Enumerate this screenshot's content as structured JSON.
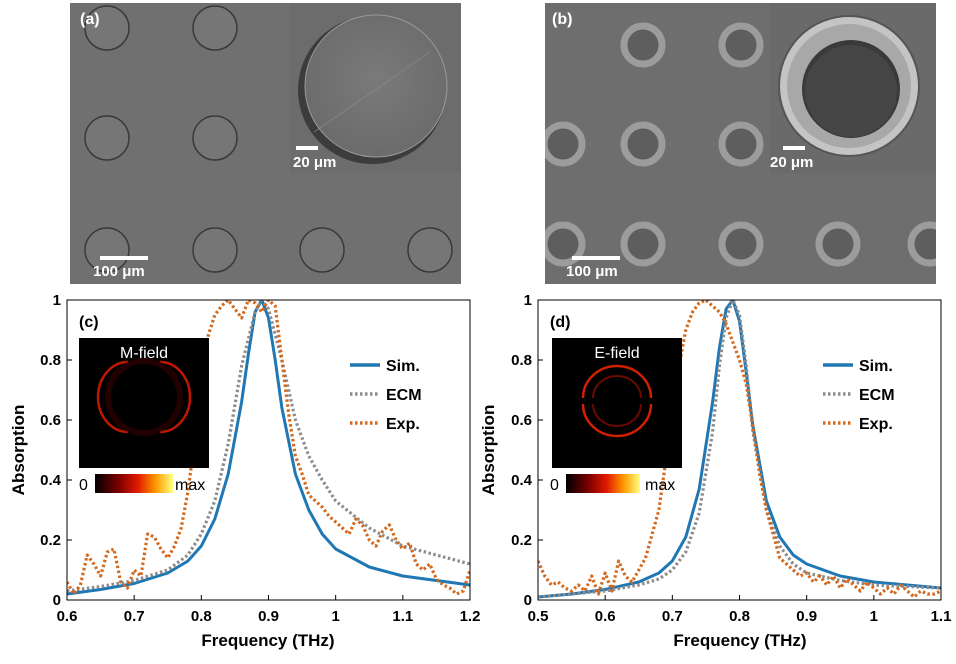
{
  "panels": {
    "a": {
      "label": "(a)",
      "scale_main": "100 μm",
      "scale_inset": "20 μm"
    },
    "b": {
      "label": "(b)",
      "scale_main": "100 μm",
      "scale_inset": "20 μm"
    }
  },
  "colorbar": {
    "min_label": "0",
    "max_label": "max"
  },
  "colors": {
    "sim": "#1f77b4",
    "ecm": "#8c8c8c",
    "exp": "#d2691e"
  },
  "chart_data": [
    {
      "type": "line",
      "panel_label": "(c)",
      "inset_title": "M-field",
      "xlabel": "Frequency (THz)",
      "ylabel": "Absorption",
      "xlim": [
        0.6,
        1.2
      ],
      "ylim": [
        0,
        1
      ],
      "xticks": [
        "0.6",
        "0.7",
        "0.8",
        "0.9",
        "1",
        "1.1",
        "1.2"
      ],
      "yticks": [
        "0",
        "0.2",
        "0.4",
        "0.6",
        "0.8",
        "1"
      ],
      "legend_position": "right",
      "series": [
        {
          "name": "Sim.",
          "style": "solid",
          "x": [
            0.6,
            0.65,
            0.7,
            0.75,
            0.78,
            0.8,
            0.82,
            0.84,
            0.86,
            0.87,
            0.88,
            0.89,
            0.9,
            0.91,
            0.92,
            0.94,
            0.96,
            0.98,
            1.0,
            1.05,
            1.1,
            1.15,
            1.2
          ],
          "y": [
            0.02,
            0.035,
            0.055,
            0.09,
            0.13,
            0.18,
            0.27,
            0.42,
            0.66,
            0.82,
            0.96,
            1.0,
            0.94,
            0.8,
            0.64,
            0.42,
            0.3,
            0.22,
            0.17,
            0.11,
            0.08,
            0.065,
            0.05
          ]
        },
        {
          "name": "ECM",
          "style": "dotted",
          "x": [
            0.6,
            0.65,
            0.7,
            0.75,
            0.78,
            0.8,
            0.82,
            0.84,
            0.86,
            0.88,
            0.89,
            0.9,
            0.92,
            0.94,
            0.96,
            0.98,
            1.0,
            1.05,
            1.1,
            1.15,
            1.2
          ],
          "y": [
            0.03,
            0.045,
            0.065,
            0.1,
            0.15,
            0.22,
            0.33,
            0.52,
            0.78,
            0.96,
            1.0,
            0.97,
            0.8,
            0.6,
            0.48,
            0.4,
            0.33,
            0.24,
            0.18,
            0.15,
            0.12
          ]
        },
        {
          "name": "Exp.",
          "style": "dotted",
          "x": [
            0.6,
            0.61,
            0.62,
            0.63,
            0.64,
            0.65,
            0.66,
            0.67,
            0.68,
            0.69,
            0.7,
            0.71,
            0.72,
            0.73,
            0.74,
            0.75,
            0.76,
            0.77,
            0.78,
            0.79,
            0.8,
            0.81,
            0.82,
            0.83,
            0.84,
            0.85,
            0.86,
            0.87,
            0.88,
            0.89,
            0.9,
            0.91,
            0.92,
            0.93,
            0.94,
            0.95,
            0.96,
            0.97,
            0.98,
            0.99,
            1.0,
            1.01,
            1.02,
            1.03,
            1.04,
            1.05,
            1.06,
            1.07,
            1.08,
            1.09,
            1.1,
            1.11,
            1.12,
            1.13,
            1.14,
            1.15,
            1.16,
            1.17,
            1.18,
            1.19,
            1.2
          ],
          "y": [
            0.06,
            0.02,
            0.05,
            0.15,
            0.12,
            0.08,
            0.16,
            0.17,
            0.06,
            0.04,
            0.1,
            0.08,
            0.22,
            0.21,
            0.17,
            0.14,
            0.18,
            0.24,
            0.36,
            0.53,
            0.75,
            0.88,
            0.95,
            0.98,
            1.0,
            0.97,
            0.94,
            1.0,
            0.99,
            0.96,
            1.0,
            0.98,
            0.8,
            0.62,
            0.48,
            0.42,
            0.35,
            0.33,
            0.31,
            0.28,
            0.26,
            0.24,
            0.22,
            0.27,
            0.25,
            0.2,
            0.18,
            0.23,
            0.25,
            0.2,
            0.17,
            0.19,
            0.12,
            0.1,
            0.12,
            0.07,
            0.05,
            0.04,
            0.02,
            0.03,
            0.1
          ]
        }
      ]
    },
    {
      "type": "line",
      "panel_label": "(d)",
      "inset_title": "E-field",
      "xlabel": "Frequency (THz)",
      "ylabel": "Absorption",
      "xlim": [
        0.5,
        1.1
      ],
      "ylim": [
        0,
        1
      ],
      "xticks": [
        "0.5",
        "0.6",
        "0.7",
        "0.8",
        "0.9",
        "1",
        "1.1"
      ],
      "yticks": [
        "0",
        "0.2",
        "0.4",
        "0.6",
        "0.8",
        "1"
      ],
      "legend_position": "right",
      "series": [
        {
          "name": "Sim.",
          "style": "solid",
          "x": [
            0.5,
            0.55,
            0.6,
            0.65,
            0.68,
            0.7,
            0.72,
            0.74,
            0.76,
            0.77,
            0.78,
            0.79,
            0.8,
            0.81,
            0.82,
            0.84,
            0.86,
            0.88,
            0.9,
            0.95,
            1.0,
            1.05,
            1.1
          ],
          "y": [
            0.01,
            0.02,
            0.035,
            0.06,
            0.09,
            0.13,
            0.21,
            0.37,
            0.66,
            0.84,
            0.97,
            1.0,
            0.93,
            0.76,
            0.58,
            0.33,
            0.21,
            0.15,
            0.12,
            0.08,
            0.06,
            0.05,
            0.04
          ]
        },
        {
          "name": "ECM",
          "style": "dotted",
          "x": [
            0.5,
            0.55,
            0.6,
            0.65,
            0.68,
            0.7,
            0.72,
            0.74,
            0.76,
            0.77,
            0.78,
            0.79,
            0.8,
            0.81,
            0.82,
            0.84,
            0.86,
            0.88,
            0.9,
            0.95,
            1.0,
            1.05,
            1.1
          ],
          "y": [
            0.01,
            0.02,
            0.03,
            0.05,
            0.07,
            0.1,
            0.16,
            0.29,
            0.56,
            0.78,
            0.94,
            1.0,
            0.95,
            0.78,
            0.56,
            0.3,
            0.18,
            0.12,
            0.09,
            0.065,
            0.05,
            0.045,
            0.04
          ]
        },
        {
          "name": "Exp.",
          "style": "dotted",
          "x": [
            0.5,
            0.51,
            0.52,
            0.53,
            0.54,
            0.55,
            0.56,
            0.57,
            0.58,
            0.59,
            0.6,
            0.61,
            0.62,
            0.63,
            0.64,
            0.65,
            0.66,
            0.67,
            0.68,
            0.69,
            0.7,
            0.71,
            0.72,
            0.73,
            0.74,
            0.75,
            0.76,
            0.77,
            0.78,
            0.79,
            0.8,
            0.81,
            0.82,
            0.83,
            0.84,
            0.85,
            0.86,
            0.87,
            0.88,
            0.89,
            0.9,
            0.91,
            0.92,
            0.93,
            0.94,
            0.95,
            0.96,
            0.97,
            0.98,
            0.99,
            1.0,
            1.01,
            1.02,
            1.03,
            1.04,
            1.05,
            1.06,
            1.07,
            1.08,
            1.09,
            1.1
          ],
          "y": [
            0.13,
            0.08,
            0.05,
            0.06,
            0.04,
            0.03,
            0.05,
            0.03,
            0.08,
            0.02,
            0.09,
            0.03,
            0.13,
            0.08,
            0.06,
            0.1,
            0.14,
            0.22,
            0.3,
            0.46,
            0.62,
            0.78,
            0.9,
            0.96,
            0.99,
            1.0,
            0.98,
            0.96,
            0.92,
            0.86,
            0.8,
            0.72,
            0.58,
            0.42,
            0.3,
            0.22,
            0.14,
            0.12,
            0.1,
            0.08,
            0.09,
            0.06,
            0.08,
            0.05,
            0.08,
            0.04,
            0.07,
            0.05,
            0.03,
            0.06,
            0.04,
            0.02,
            0.04,
            0.02,
            0.05,
            0.03,
            0.01,
            0.03,
            0.02,
            0.02,
            0.03
          ]
        }
      ]
    }
  ]
}
